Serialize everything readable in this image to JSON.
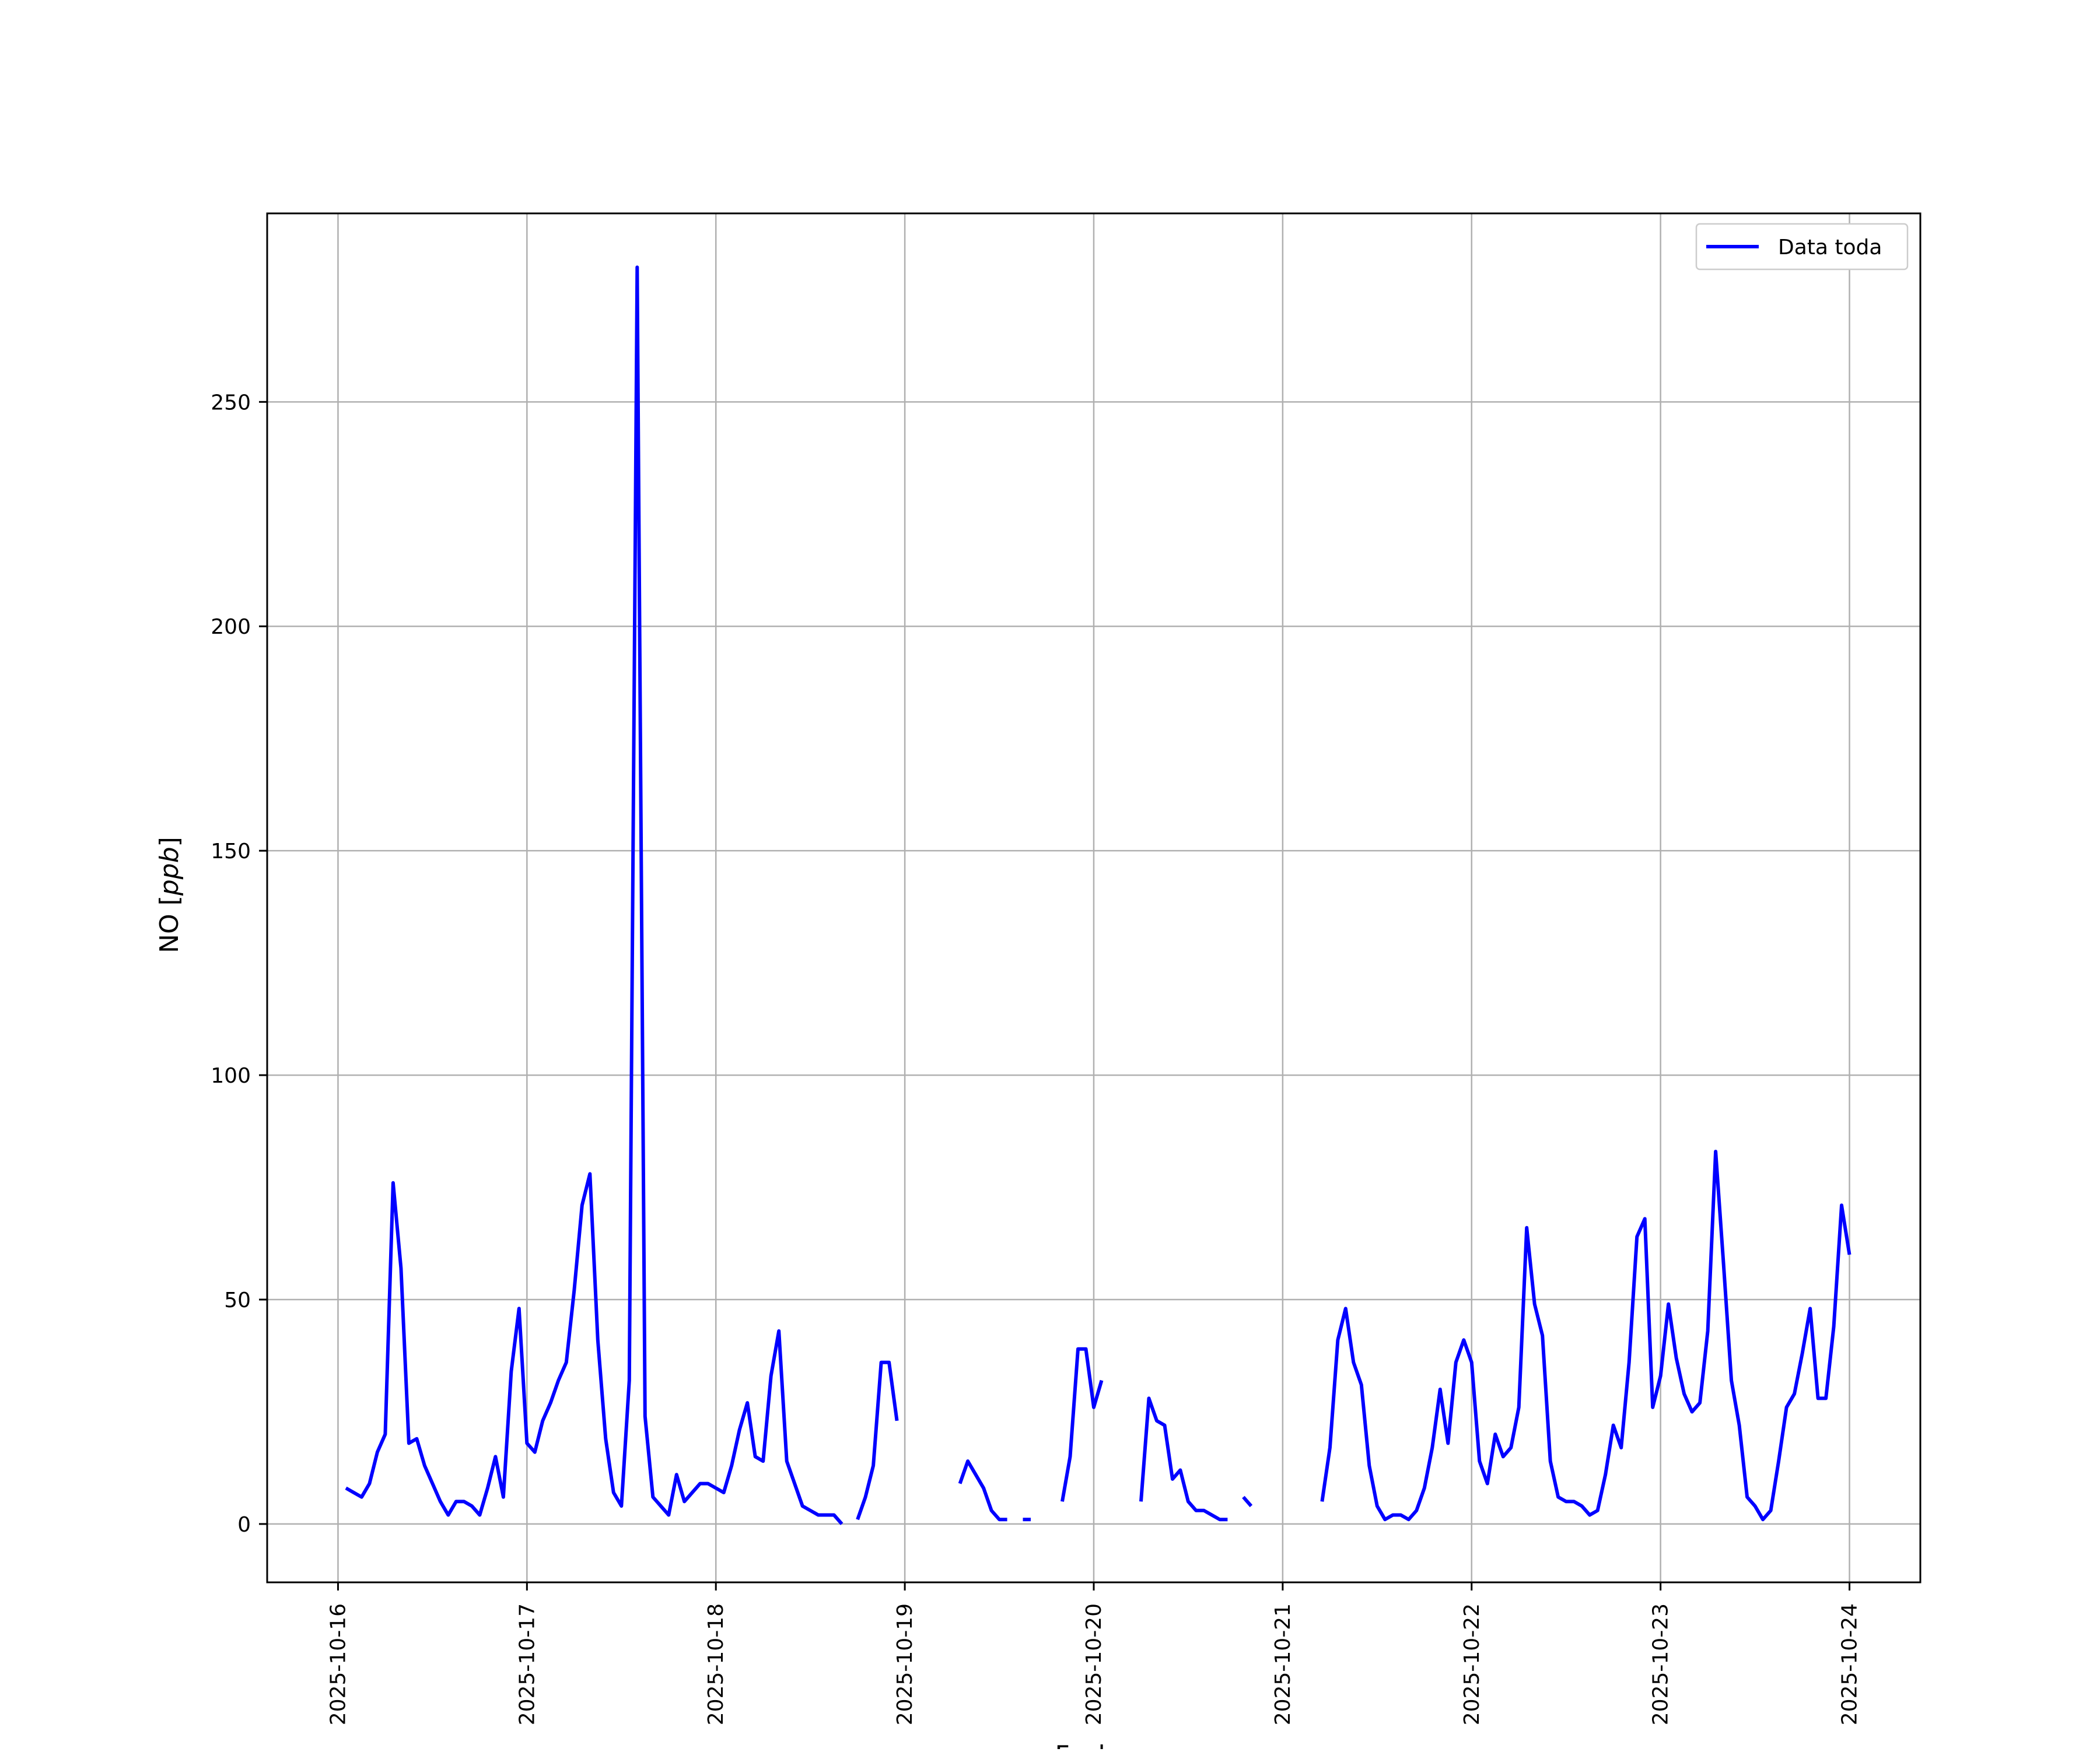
{
  "chart_data": {
    "type": "line",
    "title": "",
    "xlabel": "Fecha",
    "ylabel": "NO [ppb]",
    "xlim": [
      "2025-10-15T15:00",
      "2025-10-24T09:00"
    ],
    "ylim": [
      -13,
      292
    ],
    "grid": true,
    "legend_position": "top-right",
    "x_ticks": [
      "2025-10-16",
      "2025-10-17",
      "2025-10-18",
      "2025-10-19",
      "2025-10-20",
      "2025-10-21",
      "2025-10-22",
      "2025-10-23",
      "2025-10-24"
    ],
    "y_ticks": [
      0,
      50,
      100,
      150,
      200,
      250
    ],
    "series": [
      {
        "name": "Data toda",
        "color": "#0000ff",
        "segments": [
          [
            [
              "2025-10-16T01:00",
              8
            ],
            [
              "2025-10-16T02:00",
              7
            ],
            [
              "2025-10-16T03:00",
              6
            ],
            [
              "2025-10-16T04:00",
              9
            ],
            [
              "2025-10-16T05:00",
              16
            ],
            [
              "2025-10-16T06:00",
              20
            ],
            [
              "2025-10-16T07:00",
              76
            ],
            [
              "2025-10-16T08:00",
              57
            ],
            [
              "2025-10-16T09:00",
              18
            ],
            [
              "2025-10-16T10:00",
              19
            ],
            [
              "2025-10-16T11:00",
              13
            ],
            [
              "2025-10-16T12:00",
              9
            ],
            [
              "2025-10-16T13:00",
              5
            ],
            [
              "2025-10-16T14:00",
              2
            ],
            [
              "2025-10-16T15:00",
              5
            ],
            [
              "2025-10-16T16:00",
              5
            ],
            [
              "2025-10-16T17:00",
              4
            ],
            [
              "2025-10-16T18:00",
              2
            ],
            [
              "2025-10-16T19:00",
              8
            ],
            [
              "2025-10-16T20:00",
              15
            ],
            [
              "2025-10-16T21:00",
              6
            ],
            [
              "2025-10-16T22:00",
              34
            ],
            [
              "2025-10-16T23:00",
              48
            ],
            [
              "2025-10-17T00:00",
              18
            ],
            [
              "2025-10-17T01:00",
              16
            ],
            [
              "2025-10-17T02:00",
              23
            ],
            [
              "2025-10-17T03:00",
              27
            ],
            [
              "2025-10-17T04:00",
              32
            ],
            [
              "2025-10-17T05:00",
              36
            ],
            [
              "2025-10-17T06:00",
              52
            ],
            [
              "2025-10-17T07:00",
              71
            ],
            [
              "2025-10-17T08:00",
              78
            ],
            [
              "2025-10-17T09:00",
              41
            ],
            [
              "2025-10-17T10:00",
              19
            ],
            [
              "2025-10-17T11:00",
              7
            ],
            [
              "2025-10-17T12:00",
              4
            ],
            [
              "2025-10-17T13:00",
              32
            ],
            [
              "2025-10-17T14:00",
              280
            ],
            [
              "2025-10-17T15:00",
              24
            ],
            [
              "2025-10-17T16:00",
              6
            ],
            [
              "2025-10-17T17:00",
              4
            ],
            [
              "2025-10-17T18:00",
              2
            ],
            [
              "2025-10-17T19:00",
              11
            ],
            [
              "2025-10-17T20:00",
              5
            ],
            [
              "2025-10-17T21:00",
              7
            ],
            [
              "2025-10-17T22:00",
              9
            ],
            [
              "2025-10-17T23:00",
              9
            ],
            [
              "2025-10-18T00:00",
              8
            ],
            [
              "2025-10-18T01:00",
              7
            ],
            [
              "2025-10-18T02:00",
              13
            ],
            [
              "2025-10-18T03:00",
              21
            ],
            [
              "2025-10-18T04:00",
              27
            ],
            [
              "2025-10-18T05:00",
              15
            ],
            [
              "2025-10-18T06:00",
              14
            ],
            [
              "2025-10-18T07:00",
              33
            ],
            [
              "2025-10-18T08:00",
              43
            ],
            [
              "2025-10-18T09:00",
              14
            ],
            [
              "2025-10-18T10:00",
              9
            ],
            [
              "2025-10-18T11:00",
              4
            ],
            [
              "2025-10-18T12:00",
              3
            ],
            [
              "2025-10-18T13:00",
              2
            ],
            [
              "2025-10-18T14:00",
              2
            ],
            [
              "2025-10-18T15:00",
              2
            ],
            [
              "2025-10-18T16:00",
              0
            ]
          ],
          [
            [
              "2025-10-18T18:00",
              1
            ],
            [
              "2025-10-18T19:00",
              6
            ],
            [
              "2025-10-18T20:00",
              13
            ],
            [
              "2025-10-18T21:00",
              36
            ],
            [
              "2025-10-18T22:00",
              36
            ],
            [
              "2025-10-18T23:00",
              23
            ]
          ],
          [
            [
              "2025-10-19T07:00",
              9
            ],
            [
              "2025-10-19T08:00",
              14
            ],
            [
              "2025-10-19T09:00",
              11
            ],
            [
              "2025-10-19T10:00",
              8
            ],
            [
              "2025-10-19T11:00",
              3
            ],
            [
              "2025-10-19T12:00",
              1
            ],
            [
              "2025-10-19T13:00",
              1
            ]
          ],
          [
            [
              "2025-10-19T15:00",
              1
            ],
            [
              "2025-10-19T16:00",
              1
            ]
          ],
          [
            [
              "2025-10-19T20:00",
              5
            ],
            [
              "2025-10-19T21:00",
              15
            ],
            [
              "2025-10-19T22:00",
              39
            ],
            [
              "2025-10-19T23:00",
              39
            ],
            [
              "2025-10-20T00:00",
              26
            ],
            [
              "2025-10-20T01:00",
              32
            ]
          ],
          [
            [
              "2025-10-20T06:00",
              5
            ],
            [
              "2025-10-20T07:00",
              28
            ],
            [
              "2025-10-20T08:00",
              23
            ],
            [
              "2025-10-20T09:00",
              22
            ],
            [
              "2025-10-20T10:00",
              10
            ],
            [
              "2025-10-20T11:00",
              12
            ],
            [
              "2025-10-20T12:00",
              5
            ],
            [
              "2025-10-20T13:00",
              3
            ],
            [
              "2025-10-20T14:00",
              3
            ],
            [
              "2025-10-20T15:00",
              2
            ],
            [
              "2025-10-20T16:00",
              1
            ],
            [
              "2025-10-20T17:00",
              1
            ]
          ],
          [
            [
              "2025-10-20T19:00",
              6
            ],
            [
              "2025-10-20T20:00",
              4
            ]
          ],
          [
            [
              "2025-10-21T05:00",
              5
            ],
            [
              "2025-10-21T06:00",
              17
            ],
            [
              "2025-10-21T07:00",
              41
            ],
            [
              "2025-10-21T08:00",
              48
            ],
            [
              "2025-10-21T09:00",
              36
            ],
            [
              "2025-10-21T10:00",
              31
            ],
            [
              "2025-10-21T11:00",
              13
            ],
            [
              "2025-10-21T12:00",
              4
            ],
            [
              "2025-10-21T13:00",
              1
            ],
            [
              "2025-10-21T14:00",
              2
            ],
            [
              "2025-10-21T15:00",
              2
            ],
            [
              "2025-10-21T16:00",
              1
            ],
            [
              "2025-10-21T17:00",
              3
            ],
            [
              "2025-10-21T18:00",
              8
            ],
            [
              "2025-10-21T19:00",
              17
            ],
            [
              "2025-10-21T20:00",
              30
            ],
            [
              "2025-10-21T21:00",
              18
            ],
            [
              "2025-10-21T22:00",
              36
            ],
            [
              "2025-10-21T23:00",
              41
            ],
            [
              "2025-10-22T00:00",
              36
            ],
            [
              "2025-10-22T01:00",
              14
            ],
            [
              "2025-10-22T02:00",
              9
            ],
            [
              "2025-10-22T03:00",
              20
            ],
            [
              "2025-10-22T04:00",
              15
            ],
            [
              "2025-10-22T05:00",
              17
            ],
            [
              "2025-10-22T06:00",
              26
            ],
            [
              "2025-10-22T07:00",
              66
            ],
            [
              "2025-10-22T08:00",
              49
            ],
            [
              "2025-10-22T09:00",
              42
            ],
            [
              "2025-10-22T10:00",
              14
            ],
            [
              "2025-10-22T11:00",
              6
            ],
            [
              "2025-10-22T12:00",
              5
            ],
            [
              "2025-10-22T13:00",
              5
            ],
            [
              "2025-10-22T14:00",
              4
            ],
            [
              "2025-10-22T15:00",
              2
            ],
            [
              "2025-10-22T16:00",
              3
            ],
            [
              "2025-10-22T17:00",
              11
            ],
            [
              "2025-10-22T18:00",
              22
            ],
            [
              "2025-10-22T19:00",
              17
            ],
            [
              "2025-10-22T20:00",
              36
            ],
            [
              "2025-10-22T21:00",
              64
            ],
            [
              "2025-10-22T22:00",
              68
            ],
            [
              "2025-10-22T23:00",
              26
            ],
            [
              "2025-10-23T00:00",
              33
            ],
            [
              "2025-10-23T01:00",
              49
            ],
            [
              "2025-10-23T02:00",
              37
            ],
            [
              "2025-10-23T03:00",
              29
            ],
            [
              "2025-10-23T04:00",
              25
            ],
            [
              "2025-10-23T05:00",
              27
            ],
            [
              "2025-10-23T06:00",
              43
            ],
            [
              "2025-10-23T07:00",
              83
            ],
            [
              "2025-10-23T08:00",
              58
            ],
            [
              "2025-10-23T09:00",
              32
            ],
            [
              "2025-10-23T10:00",
              22
            ],
            [
              "2025-10-23T11:00",
              6
            ],
            [
              "2025-10-23T12:00",
              4
            ],
            [
              "2025-10-23T13:00",
              1
            ],
            [
              "2025-10-23T14:00",
              3
            ],
            [
              "2025-10-23T15:00",
              14
            ],
            [
              "2025-10-23T16:00",
              26
            ],
            [
              "2025-10-23T17:00",
              29
            ],
            [
              "2025-10-23T18:00",
              38
            ],
            [
              "2025-10-23T19:00",
              48
            ],
            [
              "2025-10-23T20:00",
              28
            ],
            [
              "2025-10-23T21:00",
              28
            ],
            [
              "2025-10-23T22:00",
              44
            ],
            [
              "2025-10-23T23:00",
              71
            ],
            [
              "2025-10-24T00:00",
              60
            ]
          ]
        ]
      }
    ]
  }
}
